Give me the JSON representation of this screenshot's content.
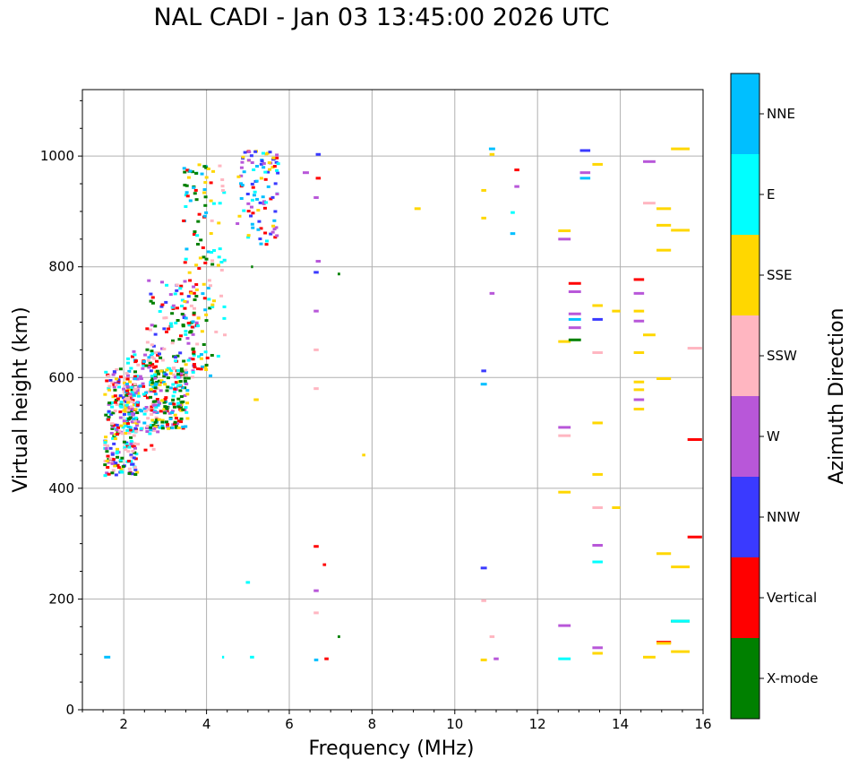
{
  "chart_data": {
    "type": "scatter",
    "title": "NAL CADI - Jan 03 13:45:00 2026 UTC",
    "xlabel": "Frequency (MHz)",
    "ylabel": "Virtual height (km)",
    "xlim": [
      1,
      16
    ],
    "ylim": [
      0,
      1120
    ],
    "xticks": [
      2,
      4,
      6,
      8,
      10,
      12,
      14,
      16
    ],
    "yticks": [
      0,
      200,
      400,
      600,
      800,
      1000
    ],
    "grid": true,
    "colorbar": {
      "label": "Azimuth Direction",
      "categories": [
        {
          "name": "X-mode",
          "color": "#008000"
        },
        {
          "name": "Vertical",
          "color": "#ff0000"
        },
        {
          "name": "NNW",
          "color": "#3a3aff"
        },
        {
          "name": "W",
          "color": "#b857d9"
        },
        {
          "name": "SSW",
          "color": "#ffb6c1"
        },
        {
          "name": "SSE",
          "color": "#ffd700"
        },
        {
          "name": "E",
          "color": "#00ffff"
        },
        {
          "name": "NNE",
          "color": "#00bfff"
        }
      ]
    },
    "clusters": [
      {
        "f": [
          1.5,
          2.3
        ],
        "h": [
          425,
          620
        ],
        "n": 260,
        "mix": [
          "Vertical",
          "SSW",
          "SSE",
          "E",
          "NNW",
          "W",
          "X-mode"
        ]
      },
      {
        "f": [
          2.0,
          2.8
        ],
        "h": [
          470,
          650
        ],
        "n": 120,
        "mix": [
          "SSW",
          "E",
          "Vertical",
          "W",
          "NNE"
        ]
      },
      {
        "f": [
          2.6,
          3.5
        ],
        "h": [
          510,
          620
        ],
        "n": 180,
        "mix": [
          "X-mode",
          "X-mode",
          "E",
          "NNE",
          "Vertical",
          "SSE",
          "W"
        ]
      },
      {
        "f": [
          2.5,
          3.8
        ],
        "h": [
          600,
          780
        ],
        "n": 120,
        "mix": [
          "SSW",
          "Vertical",
          "X-mode",
          "E",
          "W",
          "NNW"
        ]
      },
      {
        "f": [
          3.4,
          4.1
        ],
        "h": [
          600,
          990
        ],
        "n": 110,
        "mix": [
          "X-mode",
          "X-mode",
          "E",
          "SSE",
          "NNE",
          "Vertical"
        ]
      },
      {
        "f": [
          4.0,
          4.4
        ],
        "h": [
          640,
          990
        ],
        "n": 30,
        "mix": [
          "SSE",
          "SSW",
          "E"
        ]
      },
      {
        "f": [
          4.7,
          5.7
        ],
        "h": [
          840,
          1015
        ],
        "n": 100,
        "mix": [
          "NNW",
          "NNE",
          "Vertical",
          "W",
          "E",
          "SSE"
        ]
      }
    ],
    "traces": [
      {
        "f": 1.6,
        "h": 95,
        "w": 0.15,
        "az": "NNE"
      },
      {
        "f": 4.4,
        "h": 95,
        "w": 0.05,
        "az": "E"
      },
      {
        "f": 5.1,
        "h": 95,
        "w": 0.1,
        "az": "E"
      },
      {
        "f": 5.0,
        "h": 230,
        "w": 0.1,
        "az": "E"
      },
      {
        "f": 5.2,
        "h": 560,
        "w": 0.12,
        "az": "SSE"
      },
      {
        "f": 5.1,
        "h": 800,
        "w": 0.05,
        "az": "X-mode"
      },
      {
        "f": 6.7,
        "h": 1003,
        "w": 0.12,
        "az": "NNW"
      },
      {
        "f": 6.7,
        "h": 960,
        "w": 0.12,
        "az": "Vertical"
      },
      {
        "f": 6.65,
        "h": 925,
        "w": 0.12,
        "az": "W"
      },
      {
        "f": 6.4,
        "h": 970,
        "w": 0.15,
        "az": "W"
      },
      {
        "f": 6.7,
        "h": 810,
        "w": 0.12,
        "az": "W"
      },
      {
        "f": 6.65,
        "h": 790,
        "w": 0.12,
        "az": "NNW"
      },
      {
        "f": 6.65,
        "h": 720,
        "w": 0.12,
        "az": "W"
      },
      {
        "f": 6.65,
        "h": 650,
        "w": 0.12,
        "az": "SSW"
      },
      {
        "f": 6.65,
        "h": 580,
        "w": 0.12,
        "az": "SSW"
      },
      {
        "f": 6.65,
        "h": 295,
        "w": 0.12,
        "az": "Vertical"
      },
      {
        "f": 6.85,
        "h": 262,
        "w": 0.08,
        "az": "Vertical"
      },
      {
        "f": 6.65,
        "h": 215,
        "w": 0.12,
        "az": "W"
      },
      {
        "f": 6.65,
        "h": 175,
        "w": 0.12,
        "az": "SSW"
      },
      {
        "f": 6.65,
        "h": 90,
        "w": 0.1,
        "az": "NNE"
      },
      {
        "f": 6.9,
        "h": 92,
        "w": 0.1,
        "az": "Vertical"
      },
      {
        "f": 7.2,
        "h": 787,
        "w": 0.06,
        "az": "X-mode"
      },
      {
        "f": 7.2,
        "h": 132,
        "w": 0.06,
        "az": "X-mode"
      },
      {
        "f": 7.8,
        "h": 460,
        "w": 0.08,
        "az": "SSE"
      },
      {
        "f": 9.1,
        "h": 905,
        "w": 0.15,
        "az": "SSE"
      },
      {
        "f": 10.9,
        "h": 1013,
        "w": 0.15,
        "az": "NNE"
      },
      {
        "f": 10.9,
        "h": 1003,
        "w": 0.12,
        "az": "SSE"
      },
      {
        "f": 10.7,
        "h": 938,
        "w": 0.12,
        "az": "SSE"
      },
      {
        "f": 10.7,
        "h": 888,
        "w": 0.12,
        "az": "SSE"
      },
      {
        "f": 10.9,
        "h": 752,
        "w": 0.12,
        "az": "W"
      },
      {
        "f": 10.7,
        "h": 612,
        "w": 0.12,
        "az": "NNW"
      },
      {
        "f": 10.7,
        "h": 588,
        "w": 0.15,
        "az": "NNE"
      },
      {
        "f": 10.7,
        "h": 256,
        "w": 0.15,
        "az": "NNW"
      },
      {
        "f": 10.7,
        "h": 197,
        "w": 0.12,
        "az": "SSW"
      },
      {
        "f": 10.9,
        "h": 132,
        "w": 0.12,
        "az": "SSW"
      },
      {
        "f": 10.7,
        "h": 90,
        "w": 0.15,
        "az": "SSE"
      },
      {
        "f": 11.0,
        "h": 92,
        "w": 0.12,
        "az": "W"
      },
      {
        "f": 11.5,
        "h": 975,
        "w": 0.12,
        "az": "Vertical"
      },
      {
        "f": 11.5,
        "h": 945,
        "w": 0.12,
        "az": "W"
      },
      {
        "f": 11.4,
        "h": 860,
        "w": 0.12,
        "az": "NNE"
      },
      {
        "f": 11.4,
        "h": 898,
        "w": 0.1,
        "az": "E"
      },
      {
        "f": 12.65,
        "h": 865,
        "w": 0.3,
        "az": "SSE"
      },
      {
        "f": 12.65,
        "h": 850,
        "w": 0.3,
        "az": "W"
      },
      {
        "f": 12.65,
        "h": 665,
        "w": 0.3,
        "az": "SSE"
      },
      {
        "f": 12.65,
        "h": 510,
        "w": 0.3,
        "az": "W"
      },
      {
        "f": 12.65,
        "h": 495,
        "w": 0.3,
        "az": "SSW"
      },
      {
        "f": 12.65,
        "h": 393,
        "w": 0.3,
        "az": "SSE"
      },
      {
        "f": 12.65,
        "h": 152,
        "w": 0.3,
        "az": "W"
      },
      {
        "f": 12.65,
        "h": 92,
        "w": 0.3,
        "az": "E"
      },
      {
        "f": 12.9,
        "h": 770,
        "w": 0.3,
        "az": "Vertical"
      },
      {
        "f": 12.9,
        "h": 755,
        "w": 0.3,
        "az": "W"
      },
      {
        "f": 12.9,
        "h": 715,
        "w": 0.3,
        "az": "W"
      },
      {
        "f": 12.9,
        "h": 705,
        "w": 0.3,
        "az": "NNE"
      },
      {
        "f": 12.9,
        "h": 690,
        "w": 0.3,
        "az": "W"
      },
      {
        "f": 12.9,
        "h": 668,
        "w": 0.3,
        "az": "X-mode"
      },
      {
        "f": 13.15,
        "h": 1010,
        "w": 0.25,
        "az": "NNW"
      },
      {
        "f": 13.15,
        "h": 970,
        "w": 0.25,
        "az": "W"
      },
      {
        "f": 13.15,
        "h": 960,
        "w": 0.25,
        "az": "NNE"
      },
      {
        "f": 13.45,
        "h": 985,
        "w": 0.25,
        "az": "SSE"
      },
      {
        "f": 13.45,
        "h": 730,
        "w": 0.25,
        "az": "SSE"
      },
      {
        "f": 13.45,
        "h": 705,
        "w": 0.25,
        "az": "NNW"
      },
      {
        "f": 13.45,
        "h": 645,
        "w": 0.25,
        "az": "SSW"
      },
      {
        "f": 13.45,
        "h": 518,
        "w": 0.25,
        "az": "SSE"
      },
      {
        "f": 13.45,
        "h": 425,
        "w": 0.25,
        "az": "SSE"
      },
      {
        "f": 13.45,
        "h": 365,
        "w": 0.25,
        "az": "SSW"
      },
      {
        "f": 13.45,
        "h": 297,
        "w": 0.25,
        "az": "W"
      },
      {
        "f": 13.45,
        "h": 267,
        "w": 0.25,
        "az": "E"
      },
      {
        "f": 13.45,
        "h": 112,
        "w": 0.25,
        "az": "W"
      },
      {
        "f": 13.45,
        "h": 102,
        "w": 0.25,
        "az": "SSE"
      },
      {
        "f": 13.9,
        "h": 720,
        "w": 0.2,
        "az": "SSE"
      },
      {
        "f": 13.9,
        "h": 365,
        "w": 0.2,
        "az": "SSE"
      },
      {
        "f": 14.45,
        "h": 777,
        "w": 0.25,
        "az": "Vertical"
      },
      {
        "f": 14.45,
        "h": 752,
        "w": 0.25,
        "az": "W"
      },
      {
        "f": 14.45,
        "h": 720,
        "w": 0.25,
        "az": "SSE"
      },
      {
        "f": 14.45,
        "h": 702,
        "w": 0.25,
        "az": "W"
      },
      {
        "f": 14.45,
        "h": 645,
        "w": 0.25,
        "az": "SSE"
      },
      {
        "f": 14.45,
        "h": 592,
        "w": 0.25,
        "az": "SSE"
      },
      {
        "f": 14.45,
        "h": 578,
        "w": 0.25,
        "az": "SSE"
      },
      {
        "f": 14.45,
        "h": 560,
        "w": 0.25,
        "az": "W"
      },
      {
        "f": 14.45,
        "h": 543,
        "w": 0.25,
        "az": "SSE"
      },
      {
        "f": 14.7,
        "h": 990,
        "w": 0.3,
        "az": "W"
      },
      {
        "f": 14.7,
        "h": 915,
        "w": 0.3,
        "az": "SSW"
      },
      {
        "f": 14.7,
        "h": 677,
        "w": 0.3,
        "az": "SSE"
      },
      {
        "f": 14.7,
        "h": 95,
        "w": 0.3,
        "az": "SSE"
      },
      {
        "f": 15.05,
        "h": 905,
        "w": 0.35,
        "az": "SSE"
      },
      {
        "f": 15.05,
        "h": 875,
        "w": 0.35,
        "az": "SSE"
      },
      {
        "f": 15.05,
        "h": 830,
        "w": 0.35,
        "az": "SSE"
      },
      {
        "f": 15.05,
        "h": 598,
        "w": 0.35,
        "az": "SSE"
      },
      {
        "f": 15.05,
        "h": 282,
        "w": 0.35,
        "az": "SSE"
      },
      {
        "f": 15.05,
        "h": 122,
        "w": 0.35,
        "az": "Vertical"
      },
      {
        "f": 15.05,
        "h": 120,
        "w": 0.35,
        "az": "SSE"
      },
      {
        "f": 15.45,
        "h": 1013,
        "w": 0.45,
        "az": "SSE"
      },
      {
        "f": 15.45,
        "h": 866,
        "w": 0.45,
        "az": "SSE"
      },
      {
        "f": 15.45,
        "h": 258,
        "w": 0.45,
        "az": "SSE"
      },
      {
        "f": 15.45,
        "h": 160,
        "w": 0.45,
        "az": "X-mode"
      },
      {
        "f": 15.45,
        "h": 160,
        "w": 0.45,
        "az": "E"
      },
      {
        "f": 15.45,
        "h": 105,
        "w": 0.45,
        "az": "SSE"
      },
      {
        "f": 15.8,
        "h": 653,
        "w": 0.35,
        "az": "SSW"
      },
      {
        "f": 15.8,
        "h": 488,
        "w": 0.35,
        "az": "Vertical"
      },
      {
        "f": 15.8,
        "h": 312,
        "w": 0.35,
        "az": "Vertical"
      }
    ]
  }
}
